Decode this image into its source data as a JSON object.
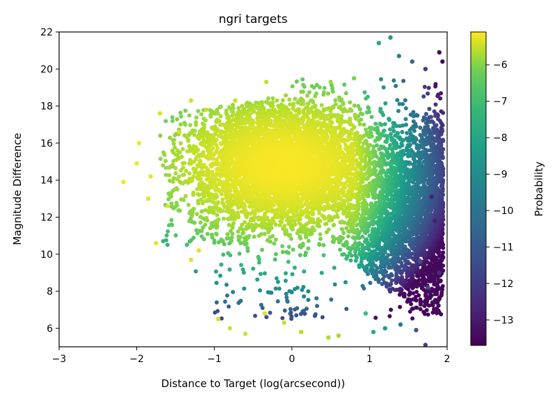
{
  "chart_data": {
    "type": "scatter",
    "title": "ngri targets",
    "xlabel": "Distance to Target (log(arcsecond))",
    "ylabel": "Magnitude Difference",
    "xlim": [
      -3,
      2
    ],
    "ylim": [
      5,
      22
    ],
    "xticks": [
      -3,
      -2,
      -1,
      0,
      1,
      2
    ],
    "yticks": [
      6,
      8,
      10,
      12,
      14,
      16,
      18,
      20,
      22
    ],
    "colorbar": {
      "label": "Probability",
      "colormap": "viridis",
      "range": [
        -13.7,
        -5.1
      ],
      "ticks": [
        -13,
        -12,
        -11,
        -10,
        -9,
        -8,
        -7,
        -6
      ]
    },
    "grid": false,
    "density_model": {
      "description": "dense cloud of points; color encodes log probability decreasing with distance",
      "core": {
        "x_center": -0.1,
        "y_center": 14.8,
        "x_spread": 0.55,
        "y_spread": 1.7
      },
      "right_edge_x": 1.95,
      "upper_envelope_max_y": 19.7
    },
    "points": [
      {
        "x": -2.17,
        "y": 13.9,
        "p": -5.3
      },
      {
        "x": -2.0,
        "y": 14.9,
        "p": -5.3
      },
      {
        "x": -1.97,
        "y": 16.0,
        "p": -5.3
      },
      {
        "x": -1.85,
        "y": 13.0,
        "p": -5.4
      },
      {
        "x": -1.82,
        "y": 14.2,
        "p": -5.4
      },
      {
        "x": -1.7,
        "y": 17.6,
        "p": -5.5
      },
      {
        "x": -1.75,
        "y": 10.6,
        "p": -5.4
      },
      {
        "x": -1.6,
        "y": 12.6,
        "p": -5.5
      },
      {
        "x": -1.45,
        "y": 16.6,
        "p": -5.6
      },
      {
        "x": -1.3,
        "y": 18.3,
        "p": -5.7
      },
      {
        "x": -1.1,
        "y": 17.8,
        "p": -5.8
      },
      {
        "x": -1.3,
        "y": 9.7,
        "p": -5.5
      },
      {
        "x": -1.2,
        "y": 10.2,
        "p": -5.5
      },
      {
        "x": -0.95,
        "y": 6.5,
        "p": -5.7
      },
      {
        "x": -0.8,
        "y": 6.0,
        "p": -5.7
      },
      {
        "x": -0.6,
        "y": 5.7,
        "p": -5.7
      },
      {
        "x": -0.35,
        "y": 6.8,
        "p": -5.6
      },
      {
        "x": -0.1,
        "y": 6.3,
        "p": -5.8
      },
      {
        "x": 0.12,
        "y": 5.8,
        "p": -6.0
      },
      {
        "x": 0.47,
        "y": 5.5,
        "p": -6.2
      },
      {
        "x": 0.6,
        "y": 5.6,
        "p": -6.3
      },
      {
        "x": 0.5,
        "y": 19.3,
        "p": -6.4
      },
      {
        "x": 0.8,
        "y": 19.5,
        "p": -6.8
      },
      {
        "x": -0.33,
        "y": 19.3,
        "p": -5.9
      },
      {
        "x": -0.73,
        "y": 18.3,
        "p": -5.8
      },
      {
        "x": 1.12,
        "y": 21.4,
        "p": -8.6
      },
      {
        "x": 1.27,
        "y": 21.7,
        "p": -9.2
      },
      {
        "x": 1.38,
        "y": 20.7,
        "p": -9.8
      },
      {
        "x": 1.55,
        "y": 20.4,
        "p": -10.9
      },
      {
        "x": 1.72,
        "y": 20.0,
        "p": -12.1
      },
      {
        "x": 1.9,
        "y": 20.9,
        "p": -13.4
      },
      {
        "x": 1.94,
        "y": 20.4,
        "p": -13.5
      },
      {
        "x": 1.9,
        "y": 9.0,
        "p": -12.6
      },
      {
        "x": 1.72,
        "y": 5.1,
        "p": -12.0
      },
      {
        "x": 1.6,
        "y": 5.9,
        "p": -11.3
      },
      {
        "x": 1.4,
        "y": 6.2,
        "p": -10.1
      },
      {
        "x": 1.2,
        "y": 6.0,
        "p": -9.0
      },
      {
        "x": 1.05,
        "y": 5.8,
        "p": -8.3
      },
      {
        "x": 0.95,
        "y": 6.8,
        "p": -7.8
      },
      {
        "x": 1.84,
        "y": 11.8,
        "p": -13.0
      },
      {
        "x": 1.8,
        "y": 13.1,
        "p": -13.0
      },
      {
        "x": 1.75,
        "y": 8.2,
        "p": -11.8
      },
      {
        "x": 1.65,
        "y": 9.6,
        "p": -11.5
      }
    ]
  }
}
